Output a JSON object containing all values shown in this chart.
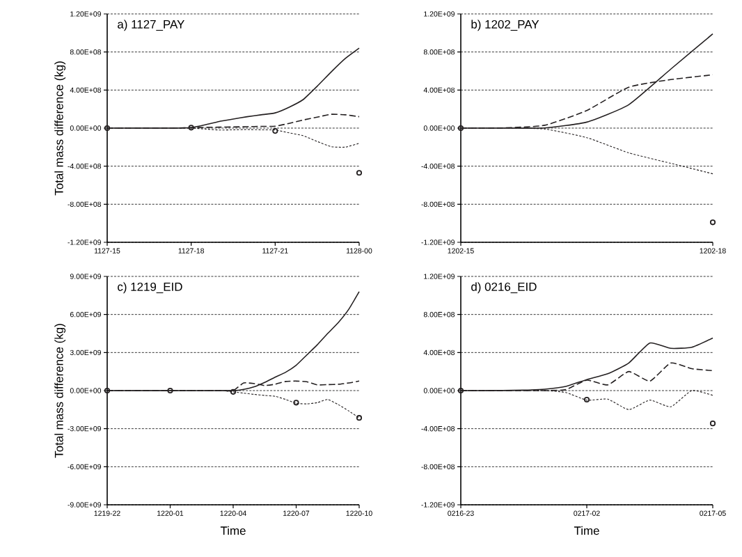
{
  "chart_data": [
    {
      "type": "line",
      "title": "a) 1127_PAY",
      "ylabel": "Total mass difference (kg)",
      "grid": "y",
      "categories": [
        "1127-15",
        null,
        null,
        null,
        null,
        null,
        "1127-18",
        null,
        null,
        null,
        null,
        null,
        "1127-21",
        null,
        null,
        null,
        null,
        null,
        "1128-00"
      ],
      "ylim": [
        -1200000000.0,
        1200000000.0
      ],
      "yticks": [
        {
          "value": -1200000000.0,
          "label": "-1.20E+09"
        },
        {
          "value": -800000000.0,
          "label": "-8.00E+08"
        },
        {
          "value": -400000000.0,
          "label": "-4.00E+08"
        },
        {
          "value": 0,
          "label": "0.00E+00"
        },
        {
          "value": 400000000.0,
          "label": "4.00E+08"
        },
        {
          "value": 800000000.0,
          "label": "8.00E+08"
        },
        {
          "value": 1200000000.0,
          "label": "1.20E+09"
        }
      ],
      "series": [
        {
          "color": "#231f20",
          "line_style": "solid",
          "marker": "none",
          "values": [
            0,
            0,
            0,
            0,
            0,
            0,
            5000000.0,
            35000000.0,
            70000000.0,
            95000000.0,
            120000000.0,
            140000000.0,
            160000000.0,
            220000000.0,
            300000000.0,
            440000000.0,
            590000000.0,
            730000000.0,
            840000000.0
          ]
        },
        {
          "color": "#231f20",
          "line_style": "dashed",
          "marker": "none",
          "values": [
            0,
            0,
            0,
            0,
            0,
            0,
            5000000.0,
            8000000.0,
            10000000.0,
            12000000.0,
            15000000.0,
            18000000.0,
            20000000.0,
            50000000.0,
            85000000.0,
            115000000.0,
            145000000.0,
            140000000.0,
            120000000.0
          ]
        },
        {
          "color": "#231f20",
          "line_style": "dotted",
          "marker": "none",
          "values": [
            0,
            0,
            0,
            0,
            0,
            0,
            0,
            -10000000.0,
            -20000000.0,
            -18000000.0,
            -15000000.0,
            -18000000.0,
            -20000000.0,
            -50000000.0,
            -80000000.0,
            -140000000.0,
            -195000000.0,
            -200000000.0,
            -160000000.0
          ]
        },
        {
          "type": "scatter",
          "color": "#231f20",
          "marker": "circle",
          "values": [
            0,
            null,
            null,
            null,
            null,
            null,
            5000000.0,
            null,
            null,
            null,
            null,
            null,
            -30000000.0,
            null,
            null,
            null,
            null,
            null,
            -470000000.0
          ]
        }
      ]
    },
    {
      "type": "line",
      "title": "b) 1202_PAY",
      "grid": "y",
      "categories": [
        "1202-15",
        null,
        null,
        null,
        null,
        null,
        "1202-18"
      ],
      "ylim": [
        -1200000000.0,
        1200000000.0
      ],
      "yticks": [
        {
          "value": -1200000000.0,
          "label": "-1.20E+09"
        },
        {
          "value": -800000000.0,
          "label": "-8.00E+08"
        },
        {
          "value": -400000000.0,
          "label": "-4.00E+08"
        },
        {
          "value": 0,
          "label": "0.00E+00"
        },
        {
          "value": 400000000.0,
          "label": "4.00E+08"
        },
        {
          "value": 800000000.0,
          "label": "8.00E+08"
        },
        {
          "value": 1200000000.0,
          "label": "1.20E+09"
        }
      ],
      "series": [
        {
          "color": "#231f20",
          "line_style": "solid",
          "marker": "none",
          "values": [
            0,
            0,
            2000000.0,
            63000000.0,
            246000000.0,
            620000000.0,
            990000000.0
          ]
        },
        {
          "color": "#231f20",
          "line_style": "dashed",
          "marker": "none",
          "values": [
            0,
            2000000.0,
            30000000.0,
            185000000.0,
            430000000.0,
            510000000.0,
            560000000.0
          ]
        },
        {
          "color": "#231f20",
          "line_style": "dotted",
          "marker": "none",
          "values": [
            0,
            0,
            -10000000.0,
            -100000000.0,
            -260000000.0,
            -370000000.0,
            -480000000.0
          ]
        },
        {
          "type": "scatter",
          "color": "#231f20",
          "marker": "circle",
          "values": [
            0,
            null,
            null,
            null,
            null,
            null,
            -990000000.0
          ]
        }
      ]
    },
    {
      "type": "line",
      "title": "c) 1219_EID",
      "ylabel": "Total mass difference (kg)",
      "xlabel": "Time",
      "grid": "y",
      "categories": [
        "1219-22",
        null,
        null,
        null,
        null,
        null,
        "1220-01",
        null,
        null,
        null,
        null,
        null,
        "1220-04",
        null,
        null,
        null,
        null,
        null,
        "1220-07",
        null,
        null,
        null,
        null,
        null,
        "1220-10"
      ],
      "ylim": [
        -9000000000.0,
        9000000000.0
      ],
      "yticks": [
        {
          "value": -9000000000.0,
          "label": "-9.00E+09"
        },
        {
          "value": -6000000000.0,
          "label": "-6.00E+09"
        },
        {
          "value": -3000000000.0,
          "label": "-3.00E+09"
        },
        {
          "value": 0,
          "label": "0.00E+00"
        },
        {
          "value": 3000000000.0,
          "label": "3.00E+09"
        },
        {
          "value": 6000000000.0,
          "label": "6.00E+09"
        },
        {
          "value": 9000000000.0,
          "label": "9.00E+09"
        }
      ],
      "series": [
        {
          "color": "#231f20",
          "line_style": "solid",
          "marker": "none",
          "values": [
            0,
            0,
            0,
            0,
            0,
            0,
            0,
            0,
            0,
            0,
            0,
            0,
            0,
            100000000.0,
            300000000.0,
            650000000.0,
            1060000000.0,
            1450000000.0,
            2000000000.0,
            2800000000.0,
            3600000000.0,
            4500000000.0,
            5350000000.0,
            6400000000.0,
            7800000000.0
          ]
        },
        {
          "color": "#231f20",
          "line_style": "dashed",
          "marker": "none",
          "values": [
            0,
            0,
            0,
            0,
            0,
            0,
            0,
            0,
            0,
            0,
            0,
            0,
            0,
            600000000.0,
            550000000.0,
            400000000.0,
            500000000.0,
            720000000.0,
            750000000.0,
            700000000.0,
            450000000.0,
            470000000.0,
            500000000.0,
            600000000.0,
            750000000.0
          ]
        },
        {
          "color": "#231f20",
          "line_style": "dotted",
          "marker": "none",
          "values": [
            0,
            0,
            0,
            0,
            0,
            0,
            0,
            0,
            0,
            0,
            0,
            0,
            -100000000.0,
            -200000000.0,
            -300000000.0,
            -380000000.0,
            -450000000.0,
            -700000000.0,
            -1000000000.0,
            -1050000000.0,
            -950000000.0,
            -700000000.0,
            -1100000000.0,
            -1600000000.0,
            -2150000000.0
          ]
        },
        {
          "type": "scatter",
          "color": "#231f20",
          "marker": "circle",
          "values": [
            0,
            null,
            null,
            null,
            null,
            null,
            0,
            null,
            null,
            null,
            null,
            null,
            -100000000.0,
            null,
            null,
            null,
            null,
            null,
            -950000000.0,
            null,
            null,
            null,
            null,
            null,
            -2150000000.0
          ]
        }
      ]
    },
    {
      "type": "line",
      "title": "d) 0216_EID",
      "xlabel": "Time",
      "grid": "y",
      "categories": [
        "0216-23",
        null,
        null,
        null,
        null,
        null,
        "0217-02",
        null,
        null,
        null,
        null,
        null,
        "0217-05"
      ],
      "ylim": [
        -1200000000.0,
        1200000000.0
      ],
      "yticks": [
        {
          "value": -1200000000.0,
          "label": "-1.20E+09"
        },
        {
          "value": -800000000.0,
          "label": "-8.00E+08"
        },
        {
          "value": -400000000.0,
          "label": "-4.00E+08"
        },
        {
          "value": 0,
          "label": "0.00E+00"
        },
        {
          "value": 400000000.0,
          "label": "4.00E+08"
        },
        {
          "value": 800000000.0,
          "label": "8.00E+08"
        },
        {
          "value": 1200000000.0,
          "label": "1.20E+09"
        }
      ],
      "series": [
        {
          "color": "#231f20",
          "line_style": "solid",
          "marker": "none",
          "values": [
            0,
            0,
            2000000.0,
            5000000.0,
            15000000.0,
            44000000.0,
            116000000.0,
            177000000.0,
            290000000.0,
            500000000.0,
            444000000.0,
            456000000.0,
            553000000.0
          ]
        },
        {
          "color": "#231f20",
          "line_style": "dashed",
          "marker": "none",
          "values": [
            0,
            0,
            0,
            0,
            0,
            10000000.0,
            110000000.0,
            60000000.0,
            200000000.0,
            100000000.0,
            290000000.0,
            230000000.0,
            210000000.0
          ]
        },
        {
          "color": "#231f20",
          "line_style": "dotted",
          "marker": "none",
          "values": [
            0,
            0,
            0,
            0,
            0,
            -20000000.0,
            -100000000.0,
            -90000000.0,
            -200000000.0,
            -100000000.0,
            -170000000.0,
            0,
            -50000000.0
          ]
        },
        {
          "type": "scatter",
          "color": "#231f20",
          "marker": "circle",
          "values": [
            0,
            null,
            null,
            null,
            null,
            null,
            -95000000.0,
            null,
            null,
            null,
            null,
            null,
            -345000000.0
          ]
        }
      ]
    }
  ]
}
